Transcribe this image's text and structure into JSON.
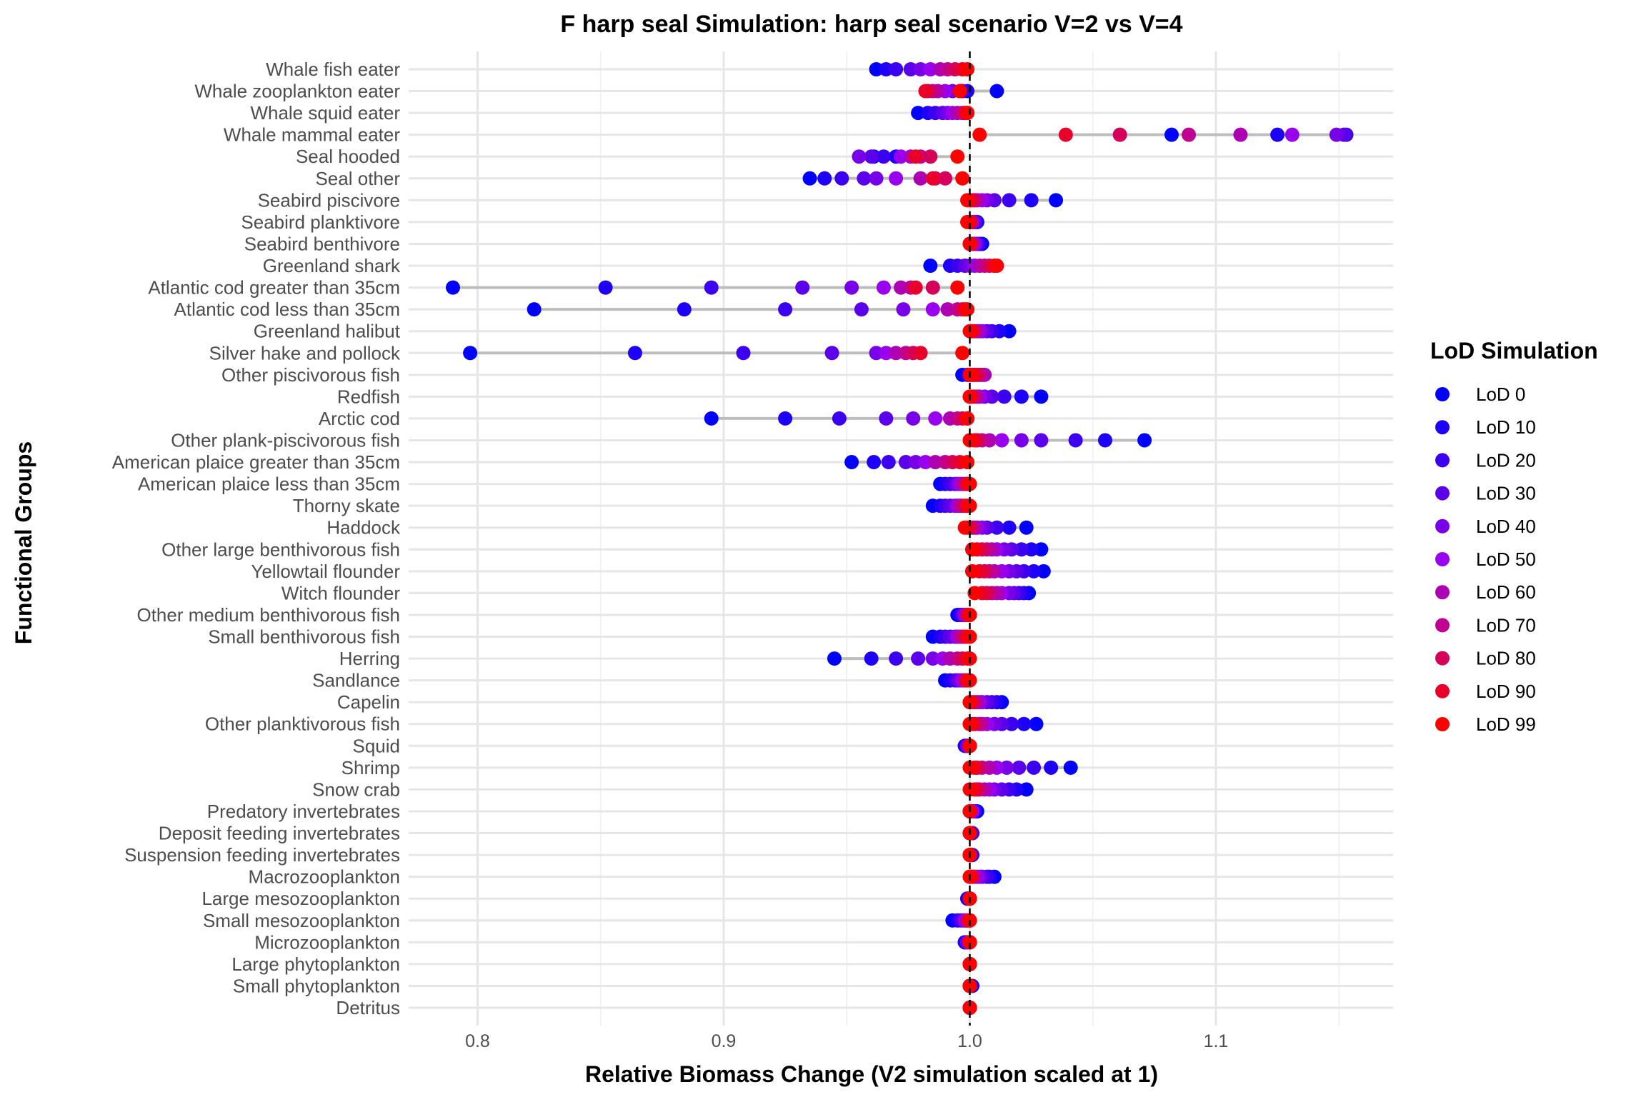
{
  "chart_data": {
    "type": "scatter",
    "title": "F harp seal Simulation: harp seal scenario V=2 vs V=4",
    "xlabel": "Relative Biomass Change (V2 simulation scaled at 1)",
    "ylabel": "Functional Groups",
    "xlim": [
      0.772,
      1.172
    ],
    "x_ticks": [
      "0.8",
      "0.9",
      "1.0",
      "1.1"
    ],
    "x_tick_values": [
      0.8,
      0.9,
      1.0,
      1.1
    ],
    "reference_line": 1.0,
    "grid": true,
    "legend": {
      "title": "LoD Simulation",
      "placement": "right",
      "entries": [
        "LoD 0",
        "LoD 10",
        "LoD 20",
        "LoD 30",
        "LoD 40",
        "LoD 50",
        "LoD 60",
        "LoD 70",
        "LoD 80",
        "LoD 90",
        "LoD 99"
      ]
    },
    "series_colors": [
      "#0000ff",
      "#1e00f8",
      "#3c00f0",
      "#5a00eb",
      "#7800e8",
      "#9900f0",
      "#ad00b4",
      "#bf0090",
      "#d4005a",
      "#e8002a",
      "#ff0000"
    ],
    "range_color": "#bdbdbd",
    "groups": [
      {
        "name": "Whale fish eater",
        "values": [
          0.962,
          0.966,
          0.97,
          0.976,
          0.98,
          0.984,
          0.988,
          0.991,
          0.994,
          0.997,
          0.999
        ]
      },
      {
        "name": "Whale zooplankton eater",
        "values": [
          1.011,
          0.999,
          0.997,
          0.996,
          0.993,
          0.99,
          0.987,
          0.985,
          0.983,
          0.982,
          0.996
        ]
      },
      {
        "name": "Whale squid eater",
        "values": [
          0.979,
          0.983,
          0.986,
          0.989,
          0.991,
          0.993,
          0.995,
          0.997,
          0.998,
          0.999,
          0.999
        ]
      },
      {
        "name": "Whale mammal eater",
        "values": [
          1.082,
          1.125,
          1.153,
          1.152,
          1.149,
          1.131,
          1.11,
          1.089,
          1.061,
          1.039,
          1.004
        ]
      },
      {
        "name": "Seal hooded",
        "values": [
          0.961,
          0.97,
          0.965,
          0.96,
          0.955,
          0.972,
          0.976,
          0.98,
          0.984,
          0.978,
          0.995
        ]
      },
      {
        "name": "Seal other",
        "values": [
          0.935,
          0.941,
          0.948,
          0.957,
          0.962,
          0.97,
          0.98,
          0.986,
          0.99,
          0.985,
          0.997
        ]
      },
      {
        "name": "Seabird piscivore",
        "values": [
          1.035,
          1.025,
          1.016,
          1.01,
          1.007,
          1.005,
          1.003,
          1.002,
          1.001,
          1.0,
          0.999
        ]
      },
      {
        "name": "Seabird planktivore",
        "values": [
          1.003,
          1.003,
          1.002,
          1.002,
          1.001,
          1.001,
          1.001,
          1.0,
          1.0,
          1.0,
          0.999
        ]
      },
      {
        "name": "Seabird benthivore",
        "values": [
          1.005,
          1.004,
          1.003,
          1.003,
          1.002,
          1.002,
          1.001,
          1.001,
          1.0,
          1.0,
          1.0
        ]
      },
      {
        "name": "Greenland shark",
        "values": [
          0.984,
          0.992,
          0.995,
          0.998,
          1.0,
          1.002,
          1.004,
          1.006,
          1.008,
          1.01,
          1.011
        ]
      },
      {
        "name": "Atlantic cod greater than 35cm",
        "values": [
          0.79,
          0.852,
          0.895,
          0.932,
          0.952,
          0.965,
          0.972,
          0.976,
          0.985,
          0.978,
          0.995
        ]
      },
      {
        "name": "Atlantic cod less than 35cm",
        "values": [
          0.823,
          0.884,
          0.925,
          0.956,
          0.973,
          0.985,
          0.991,
          0.995,
          0.997,
          0.998,
          0.999
        ]
      },
      {
        "name": "Greenland halibut",
        "values": [
          1.016,
          1.012,
          1.009,
          1.007,
          1.005,
          1.004,
          1.003,
          1.002,
          1.001,
          1.001,
          1.0
        ]
      },
      {
        "name": "Silver hake and pollock",
        "values": [
          0.797,
          0.864,
          0.908,
          0.944,
          0.962,
          0.966,
          0.97,
          0.974,
          0.977,
          0.98,
          0.997
        ]
      },
      {
        "name": "Other piscivorous fish",
        "values": [
          0.997,
          0.999,
          1.0,
          1.001,
          1.002,
          1.005,
          1.006,
          1.004,
          1.003,
          1.002,
          1.0
        ]
      },
      {
        "name": "Redfish",
        "values": [
          1.029,
          1.021,
          1.014,
          1.009,
          1.006,
          1.004,
          1.003,
          1.002,
          1.001,
          1.0,
          1.0
        ]
      },
      {
        "name": "Arctic cod",
        "values": [
          0.895,
          0.925,
          0.947,
          0.966,
          0.977,
          0.986,
          0.992,
          0.995,
          0.997,
          0.999,
          0.999
        ]
      },
      {
        "name": "Other plank-piscivorous fish",
        "values": [
          1.071,
          1.055,
          1.043,
          1.029,
          1.021,
          1.013,
          1.008,
          1.005,
          1.003,
          1.002,
          1.0
        ]
      },
      {
        "name": "American plaice greater than 35cm",
        "values": [
          0.952,
          0.961,
          0.967,
          0.974,
          0.978,
          0.982,
          0.986,
          0.99,
          0.993,
          0.996,
          0.999
        ]
      },
      {
        "name": "American plaice less than 35cm",
        "values": [
          0.988,
          0.99,
          0.992,
          0.994,
          0.995,
          0.996,
          0.997,
          0.998,
          0.999,
          0.999,
          1.0
        ]
      },
      {
        "name": "Thorny skate",
        "values": [
          0.985,
          0.988,
          0.99,
          0.992,
          0.994,
          0.995,
          0.996,
          0.997,
          0.998,
          0.999,
          1.0
        ]
      },
      {
        "name": "Haddock",
        "values": [
          1.023,
          1.016,
          1.011,
          1.007,
          1.005,
          1.003,
          1.002,
          1.001,
          1.0,
          0.999,
          0.998
        ]
      },
      {
        "name": "Other large benthivorous fish",
        "values": [
          1.029,
          1.025,
          1.021,
          1.017,
          1.014,
          1.011,
          1.009,
          1.007,
          1.005,
          1.003,
          1.001
        ]
      },
      {
        "name": "Yellowtail flounder",
        "values": [
          1.03,
          1.026,
          1.022,
          1.019,
          1.016,
          1.013,
          1.01,
          1.008,
          1.006,
          1.004,
          1.001
        ]
      },
      {
        "name": "Witch flounder",
        "values": [
          1.024,
          1.022,
          1.02,
          1.018,
          1.016,
          1.013,
          1.011,
          1.009,
          1.007,
          1.005,
          1.002
        ]
      },
      {
        "name": "Other medium benthivorous fish",
        "values": [
          0.995,
          0.996,
          0.997,
          0.997,
          0.998,
          0.998,
          0.999,
          0.999,
          0.999,
          1.0,
          1.0
        ]
      },
      {
        "name": "Small benthivorous fish",
        "values": [
          0.985,
          0.988,
          0.99,
          0.992,
          0.994,
          0.995,
          0.996,
          0.997,
          0.998,
          0.999,
          1.0
        ]
      },
      {
        "name": "Herring",
        "values": [
          0.945,
          0.96,
          0.97,
          0.979,
          0.985,
          0.989,
          0.992,
          0.995,
          0.997,
          0.999,
          1.0
        ]
      },
      {
        "name": "Sandlance",
        "values": [
          0.99,
          0.992,
          0.994,
          0.995,
          0.996,
          0.997,
          0.998,
          0.998,
          0.999,
          0.999,
          1.0
        ]
      },
      {
        "name": "Capelin",
        "values": [
          1.013,
          1.011,
          1.009,
          1.007,
          1.005,
          1.004,
          1.003,
          1.002,
          1.001,
          1.0,
          1.0
        ]
      },
      {
        "name": "Other planktivorous fish",
        "values": [
          1.027,
          1.022,
          1.017,
          1.013,
          1.01,
          1.007,
          1.005,
          1.004,
          1.002,
          1.001,
          1.0
        ]
      },
      {
        "name": "Squid",
        "values": [
          0.998,
          0.998,
          0.999,
          0.999,
          0.999,
          1.0,
          1.0,
          1.0,
          1.0,
          1.0,
          1.0
        ]
      },
      {
        "name": "Shrimp",
        "values": [
          1.041,
          1.033,
          1.026,
          1.02,
          1.015,
          1.011,
          1.008,
          1.005,
          1.003,
          1.002,
          1.0
        ]
      },
      {
        "name": "Snow crab",
        "values": [
          1.023,
          1.019,
          1.016,
          1.013,
          1.01,
          1.008,
          1.006,
          1.004,
          1.003,
          1.002,
          1.0
        ]
      },
      {
        "name": "Predatory invertebrates",
        "values": [
          1.003,
          1.002,
          1.002,
          1.001,
          1.001,
          1.001,
          1.0,
          1.0,
          1.0,
          1.0,
          1.0
        ]
      },
      {
        "name": "Deposit feeding invertebrates",
        "values": [
          1.001,
          1.001,
          1.001,
          1.0,
          1.0,
          1.0,
          1.0,
          1.0,
          1.0,
          1.0,
          1.0
        ]
      },
      {
        "name": "Suspension feeding invertebrates",
        "values": [
          1.001,
          1.001,
          1.001,
          1.0,
          1.0,
          1.0,
          1.0,
          1.0,
          1.0,
          1.0,
          1.0
        ]
      },
      {
        "name": "Macrozooplankton",
        "values": [
          1.01,
          1.008,
          1.007,
          1.005,
          1.004,
          1.003,
          1.002,
          1.001,
          1.001,
          1.0,
          1.0
        ]
      },
      {
        "name": "Large mesozooplankton",
        "values": [
          0.999,
          0.999,
          1.0,
          1.0,
          1.0,
          1.0,
          1.0,
          1.0,
          1.0,
          1.0,
          1.0
        ]
      },
      {
        "name": "Small mesozooplankton",
        "values": [
          0.993,
          0.995,
          0.996,
          0.997,
          0.998,
          0.998,
          0.999,
          0.999,
          1.0,
          1.0,
          1.0
        ]
      },
      {
        "name": "Microzooplankton",
        "values": [
          0.998,
          0.998,
          0.999,
          0.999,
          0.999,
          1.0,
          1.0,
          1.0,
          1.0,
          1.0,
          1.0
        ]
      },
      {
        "name": "Large phytoplankton",
        "values": [
          1.0,
          1.0,
          1.0,
          1.0,
          1.0,
          1.0,
          1.0,
          1.0,
          1.0,
          1.0,
          1.0
        ]
      },
      {
        "name": "Small phytoplankton",
        "values": [
          1.001,
          1.001,
          1.0,
          1.0,
          1.0,
          1.0,
          1.0,
          1.0,
          1.0,
          1.0,
          1.0
        ]
      },
      {
        "name": "Detritus",
        "values": [
          1.0,
          1.0,
          1.0,
          1.0,
          1.0,
          1.0,
          1.0,
          1.0,
          1.0,
          1.0,
          1.0
        ]
      }
    ]
  }
}
